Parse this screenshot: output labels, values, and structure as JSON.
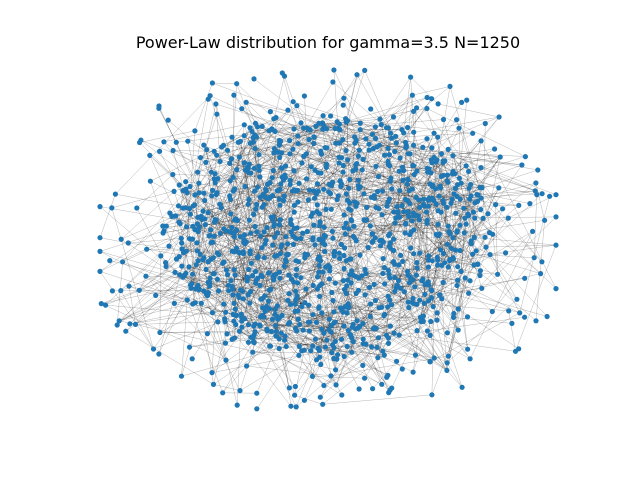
{
  "figure": {
    "title": "Power-Law distribution for gamma=3.5 N=1250"
  },
  "network": {
    "node_count": 1250,
    "gamma": 3.5,
    "layout": "force-directed, roughly elliptical cluster with sparse outliers",
    "node_color": "#1f77b4",
    "edge_color": "#000000",
    "background_color": "#ffffff"
  }
}
